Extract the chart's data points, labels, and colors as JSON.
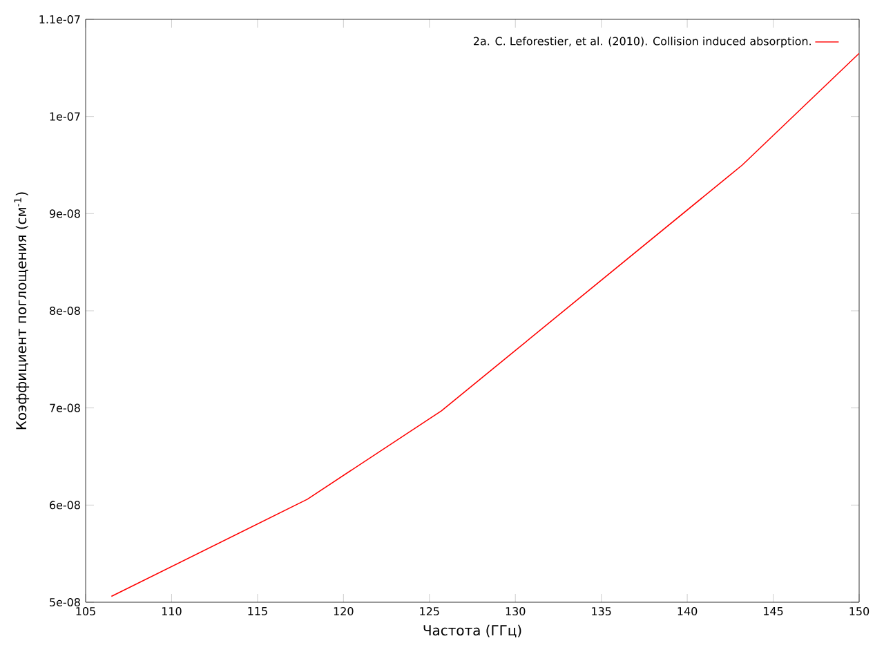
{
  "chart_data": {
    "type": "line",
    "xlabel": "Частота (ГГц)",
    "ylabel": "Коэффициент поглощения (см$^{-1}$)",
    "x": [
      106.5,
      117.9,
      125.7,
      143.2,
      150
    ],
    "series": [
      {
        "name": "2a. C. Leforestier, et al. (2010). Collision induced absorption.",
        "color": "#ff0000",
        "values": [
          5.06e-08,
          6.06e-08,
          6.97e-08,
          9.5e-08,
          1.065e-07
        ]
      }
    ],
    "xlim": [
      105,
      150
    ],
    "xticks": [
      105,
      110,
      115,
      120,
      125,
      130,
      135,
      140,
      145,
      150
    ],
    "ylim": [
      5e-08,
      1.1e-07
    ],
    "yticks": [
      {
        "value": 5e-08,
        "label": "5e-08"
      },
      {
        "value": 6e-08,
        "label": "6e-08"
      },
      {
        "value": 7e-08,
        "label": "7e-08"
      },
      {
        "value": 8e-08,
        "label": "8e-08"
      },
      {
        "value": 9e-08,
        "label": "9e-08"
      },
      {
        "value": 1e-07,
        "label": "1e-07"
      },
      {
        "value": 1.1e-07,
        "label": "1.1e-07"
      }
    ],
    "legend": "top right",
    "grid": false,
    "marker": "none",
    "line_style": "solid"
  }
}
